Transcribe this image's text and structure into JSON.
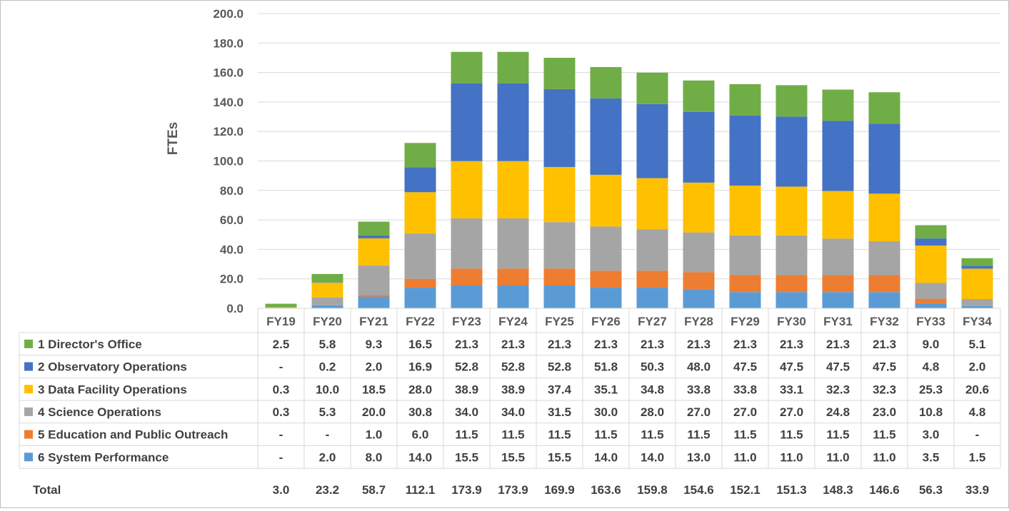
{
  "chart_data": {
    "type": "bar",
    "stacked": true,
    "ylabel": "FTEs",
    "ylim": [
      0,
      200
    ],
    "yticks": [
      "0.0",
      "20.0",
      "40.0",
      "60.0",
      "80.0",
      "100.0",
      "120.0",
      "140.0",
      "160.0",
      "180.0",
      "200.0"
    ],
    "grid": true,
    "legend": "data table",
    "categories": [
      "FY19",
      "FY20",
      "FY21",
      "FY22",
      "FY23",
      "FY24",
      "FY25",
      "FY26",
      "FY27",
      "FY28",
      "FY29",
      "FY30",
      "FY31",
      "FY32",
      "FY33",
      "FY34"
    ],
    "series": [
      {
        "name": "1  Director's Office",
        "color": "#70ad47",
        "values": [
          2.5,
          5.8,
          9.3,
          16.5,
          21.3,
          21.3,
          21.3,
          21.3,
          21.3,
          21.3,
          21.3,
          21.3,
          21.3,
          21.3,
          9.0,
          5.1
        ],
        "labels": [
          "2.5",
          "5.8",
          "9.3",
          "16.5",
          "21.3",
          "21.3",
          "21.3",
          "21.3",
          "21.3",
          "21.3",
          "21.3",
          "21.3",
          "21.3",
          "21.3",
          "9.0",
          "5.1"
        ]
      },
      {
        "name": "2  Observatory Operations",
        "color": "#4472c4",
        "values": [
          0,
          0.2,
          2.0,
          16.9,
          52.8,
          52.8,
          52.8,
          51.8,
          50.3,
          48.0,
          47.5,
          47.5,
          47.5,
          47.5,
          4.8,
          2.0
        ],
        "labels": [
          "-",
          "0.2",
          "2.0",
          "16.9",
          "52.8",
          "52.8",
          "52.8",
          "51.8",
          "50.3",
          "48.0",
          "47.5",
          "47.5",
          "47.5",
          "47.5",
          "4.8",
          "2.0"
        ]
      },
      {
        "name": "3  Data Facility Operations",
        "color": "#ffc000",
        "values": [
          0.3,
          10.0,
          18.5,
          28.0,
          38.9,
          38.9,
          37.4,
          35.1,
          34.8,
          33.8,
          33.8,
          33.1,
          32.3,
          32.3,
          25.3,
          20.6
        ],
        "labels": [
          "0.3",
          "10.0",
          "18.5",
          "28.0",
          "38.9",
          "38.9",
          "37.4",
          "35.1",
          "34.8",
          "33.8",
          "33.8",
          "33.1",
          "32.3",
          "32.3",
          "25.3",
          "20.6"
        ]
      },
      {
        "name": "4  Science Operations",
        "color": "#a5a5a5",
        "values": [
          0.3,
          5.3,
          20.0,
          30.8,
          34.0,
          34.0,
          31.5,
          30.0,
          28.0,
          27.0,
          27.0,
          27.0,
          24.8,
          23.0,
          10.8,
          4.8
        ],
        "labels": [
          "0.3",
          "5.3",
          "20.0",
          "30.8",
          "34.0",
          "34.0",
          "31.5",
          "30.0",
          "28.0",
          "27.0",
          "27.0",
          "27.0",
          "24.8",
          "23.0",
          "10.8",
          "4.8"
        ]
      },
      {
        "name": "5  Education and Public Outreach",
        "color": "#ed7d31",
        "values": [
          0,
          0,
          1.0,
          6.0,
          11.5,
          11.5,
          11.5,
          11.5,
          11.5,
          11.5,
          11.5,
          11.5,
          11.5,
          11.5,
          3.0,
          0
        ],
        "labels": [
          "-",
          "-",
          "1.0",
          "6.0",
          "11.5",
          "11.5",
          "11.5",
          "11.5",
          "11.5",
          "11.5",
          "11.5",
          "11.5",
          "11.5",
          "11.5",
          "3.0",
          "-"
        ]
      },
      {
        "name": "6  System Performance",
        "color": "#5b9bd5",
        "values": [
          0,
          2.0,
          8.0,
          14.0,
          15.5,
          15.5,
          15.5,
          14.0,
          14.0,
          13.0,
          11.0,
          11.0,
          11.0,
          11.0,
          3.5,
          1.5
        ],
        "labels": [
          "-",
          "2.0",
          "8.0",
          "14.0",
          "15.5",
          "15.5",
          "15.5",
          "14.0",
          "14.0",
          "13.0",
          "11.0",
          "11.0",
          "11.0",
          "11.0",
          "3.5",
          "1.5"
        ]
      }
    ],
    "total_label": "Total",
    "totals": [
      "3.0",
      "23.2",
      "58.7",
      "112.1",
      "173.9",
      "173.9",
      "169.9",
      "163.6",
      "159.8",
      "154.6",
      "152.1",
      "151.3",
      "148.3",
      "146.6",
      "56.3",
      "33.9"
    ]
  }
}
